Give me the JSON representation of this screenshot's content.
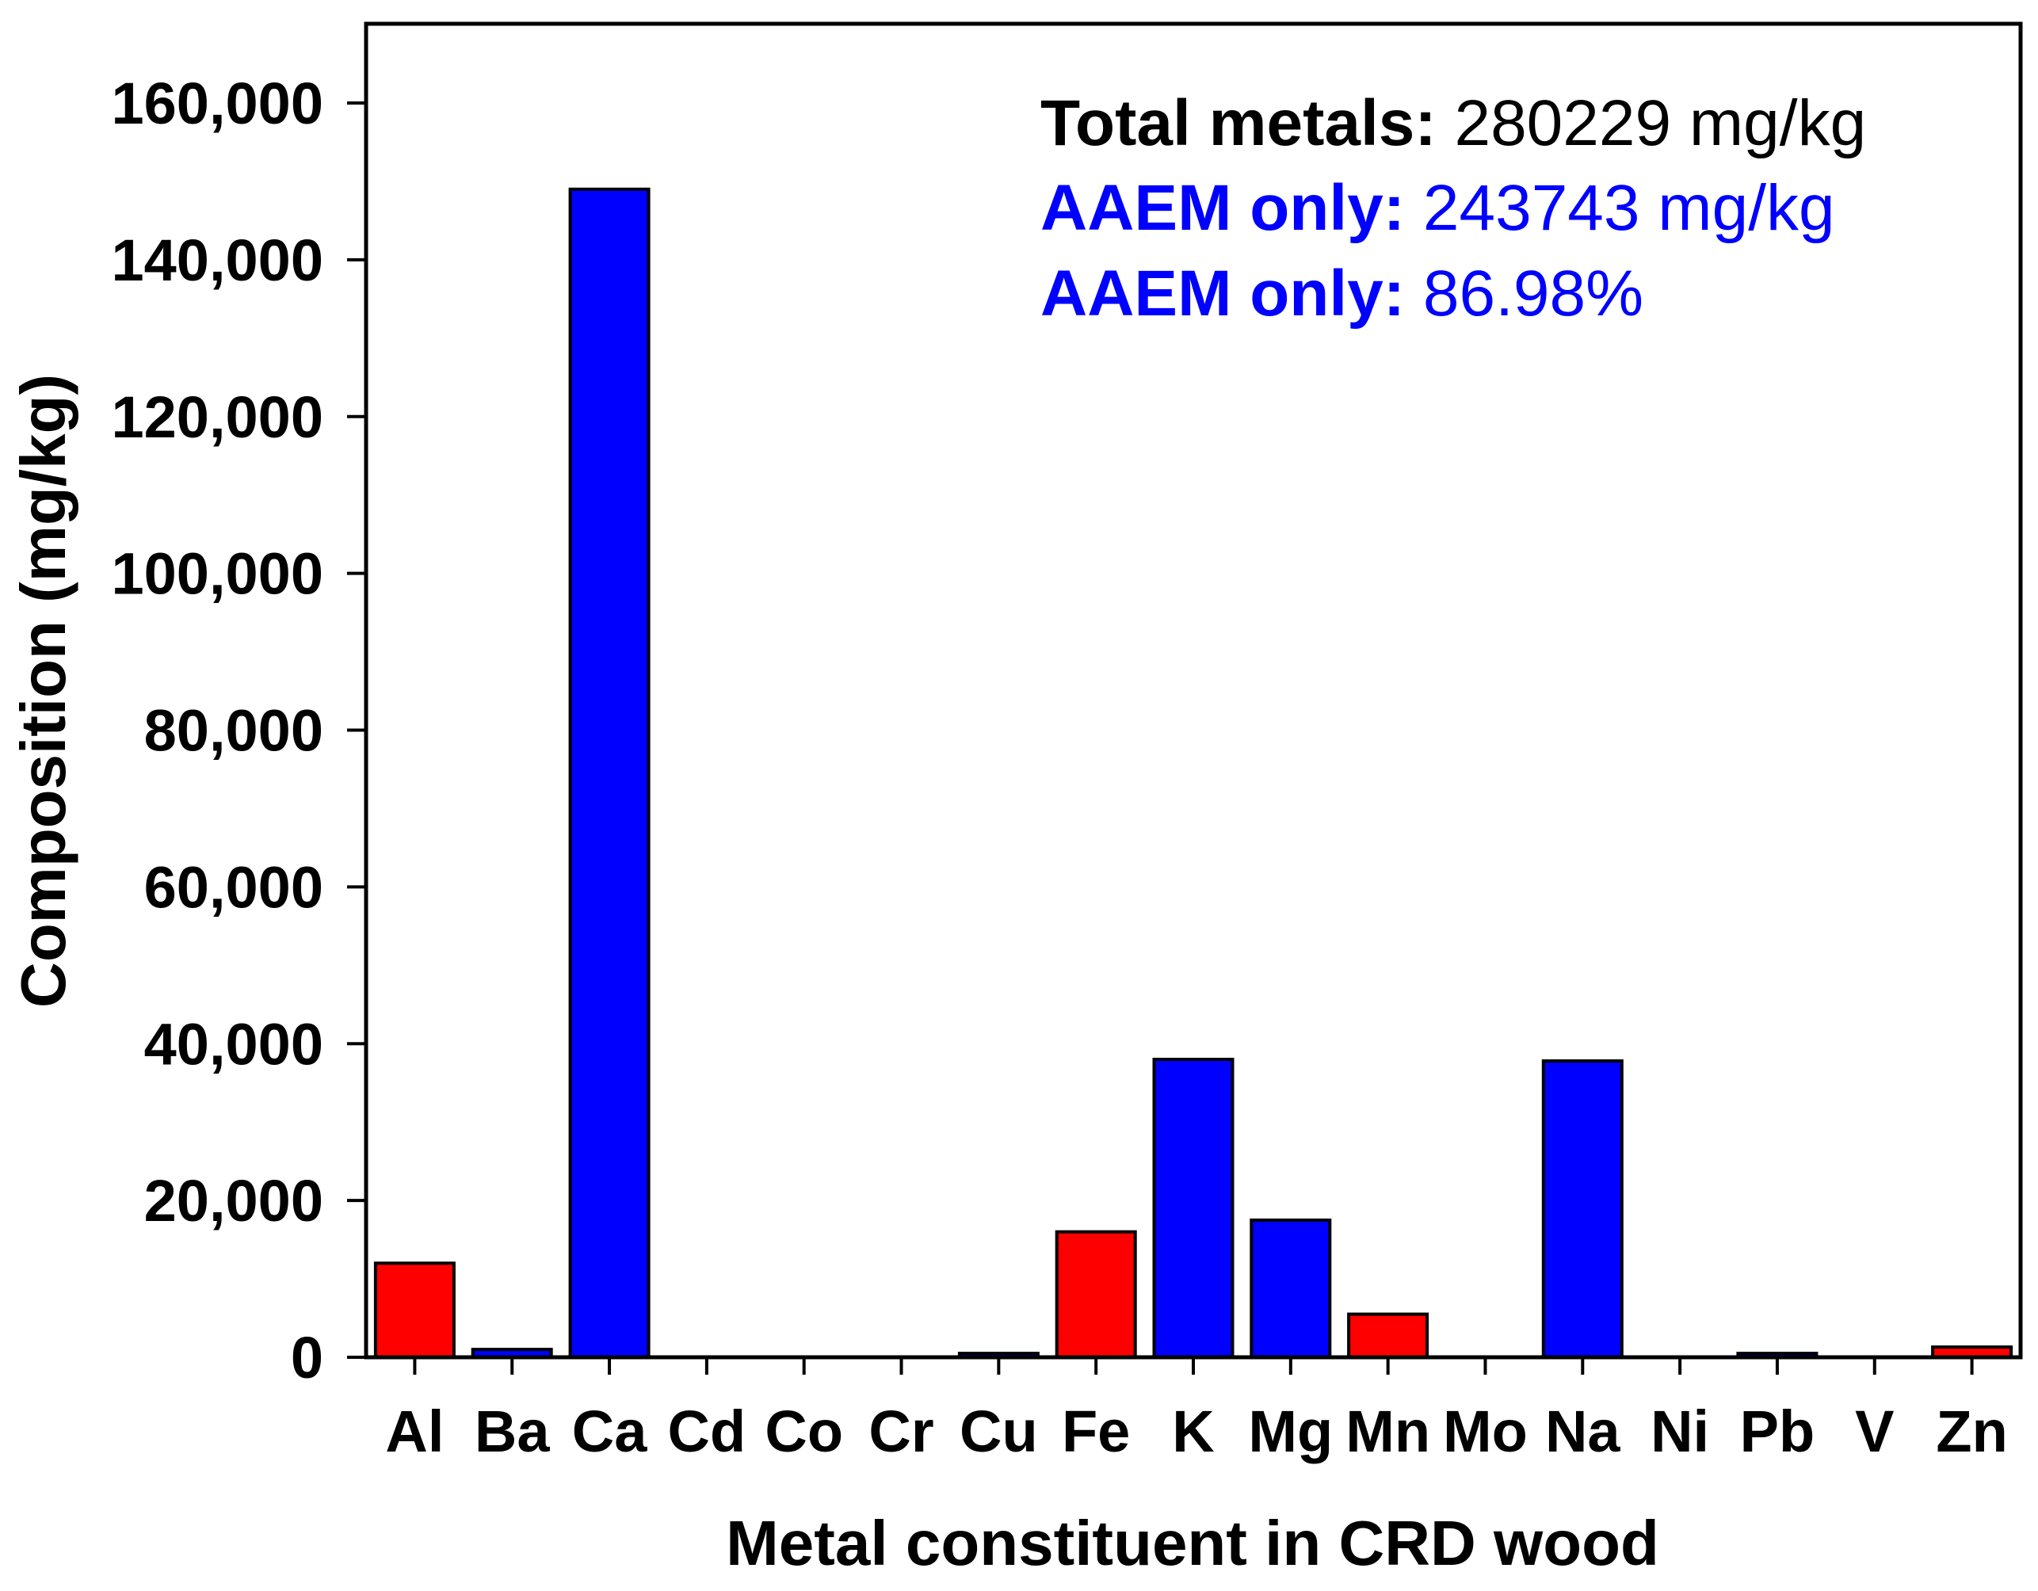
{
  "chart_data": {
    "type": "bar",
    "title": "",
    "xlabel": "Metal constituent in CRD wood",
    "ylabel": "Composition (mg/kg)",
    "ylim": [
      0,
      170000
    ],
    "yticks": [
      0,
      20000,
      40000,
      60000,
      80000,
      100000,
      120000,
      140000,
      160000
    ],
    "ytick_labels": [
      "0",
      "20,000",
      "40,000",
      "60,000",
      "80,000",
      "100,000",
      "120,000",
      "140,000",
      "160,000"
    ],
    "categories": [
      "Al",
      "Ba",
      "Ca",
      "Cd",
      "Co",
      "Cr",
      "Cu",
      "Fe",
      "K",
      "Mg",
      "Mn",
      "Mo",
      "Na",
      "Ni",
      "Pb",
      "V",
      "Zn"
    ],
    "values": [
      12000,
      1000,
      149000,
      0,
      0,
      0,
      500,
      16000,
      38000,
      17500,
      5500,
      0,
      37800,
      0,
      500,
      0,
      1300
    ],
    "groups": [
      "other",
      "aaem",
      "aaem",
      "other",
      "other",
      "other",
      "aaem",
      "other",
      "aaem",
      "aaem",
      "other",
      "other",
      "aaem",
      "other",
      "aaem",
      "other",
      "other"
    ],
    "colors": {
      "aaem": "#0000ff",
      "other": "#ff0000",
      "text_aaem": "#0000ff",
      "text_default": "#000000"
    },
    "grid": false,
    "annotations": [
      {
        "label": "Total metals:",
        "value": " 280229 mg/kg",
        "color": "#000000"
      },
      {
        "label": "AAEM only:",
        "value": " 243743 mg/kg",
        "color": "#0000ff"
      },
      {
        "label": "AAEM only:",
        "value": " 86.98%",
        "color": "#0000ff"
      }
    ]
  }
}
